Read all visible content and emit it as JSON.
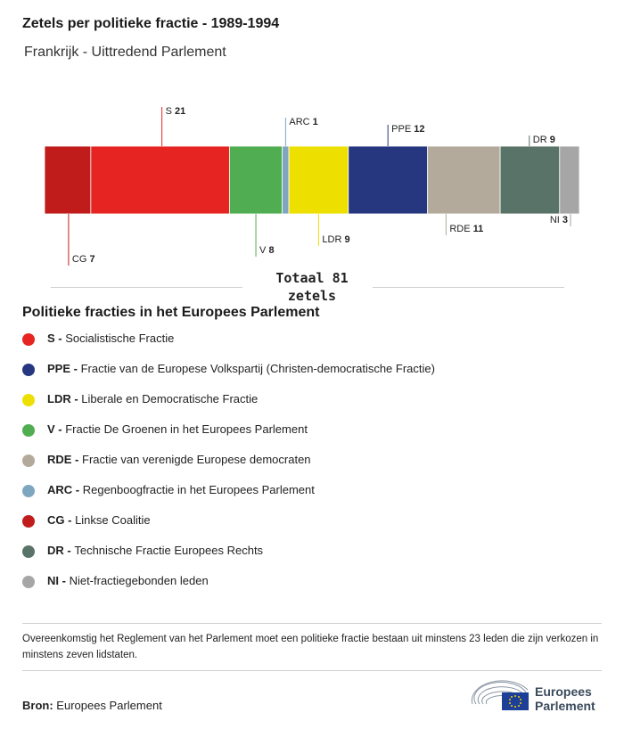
{
  "title": "Zetels per politieke fractie - 1989-1994",
  "subtitle": "Frankrijk - Uittredend Parlement",
  "total": {
    "line1": "Totaal 81",
    "line2": "zetels"
  },
  "legend_title": "Politieke fracties in het Europees Parlement",
  "chart_data": {
    "type": "bar",
    "stacked": true,
    "orientation": "horizontal",
    "total": 81,
    "series": [
      {
        "code": "CG",
        "value": 7,
        "color": "#c11c1c"
      },
      {
        "code": "S",
        "value": 21,
        "color": "#e62522"
      },
      {
        "code": "V",
        "value": 8,
        "color": "#50ad52"
      },
      {
        "code": "ARC",
        "value": 1,
        "color": "#7fa6c0"
      },
      {
        "code": "LDR",
        "value": 9,
        "color": "#ede000"
      },
      {
        "code": "PPE",
        "value": 12,
        "color": "#263780"
      },
      {
        "code": "RDE",
        "value": 11,
        "color": "#b3aa9b"
      },
      {
        "code": "DR",
        "value": 9,
        "color": "#5a7369"
      },
      {
        "code": "NI",
        "value": 3,
        "color": "#a6a6a6"
      }
    ]
  },
  "legend": [
    {
      "code": "S -",
      "name": "Socialistische Fractie",
      "color": "#e62522"
    },
    {
      "code": "PPE -",
      "name": "Fractie van de Europese Volkspartij (Christen-democratische Fractie)",
      "color": "#263780"
    },
    {
      "code": "LDR -",
      "name": "Liberale en Democratische Fractie",
      "color": "#ede000"
    },
    {
      "code": "V -",
      "name": "Fractie De Groenen in het Europees Parlement",
      "color": "#50ad52"
    },
    {
      "code": "RDE -",
      "name": "Fractie van verenigde Europese democraten",
      "color": "#b3aa9b"
    },
    {
      "code": "ARC -",
      "name": "Regenboogfractie in het Europees Parlement",
      "color": "#7fa6c0"
    },
    {
      "code": "CG -",
      "name": "Linkse Coalitie",
      "color": "#c11c1c"
    },
    {
      "code": "DR -",
      "name": "Technische Fractie Europees Rechts",
      "color": "#5a7369"
    },
    {
      "code": "NI -",
      "name": "Niet-fractiegebonden leden",
      "color": "#a6a6a6"
    }
  ],
  "note": "Overeenkomstig het Reglement van het Parlement moet een politieke fractie bestaan uit minstens 23 leden die zijn verkozen in minstens zeven lidstaten.",
  "source": {
    "label": "Bron:",
    "value": "Europees Parlement"
  },
  "logo": {
    "line1": "Europees",
    "line2": "Parlement"
  }
}
